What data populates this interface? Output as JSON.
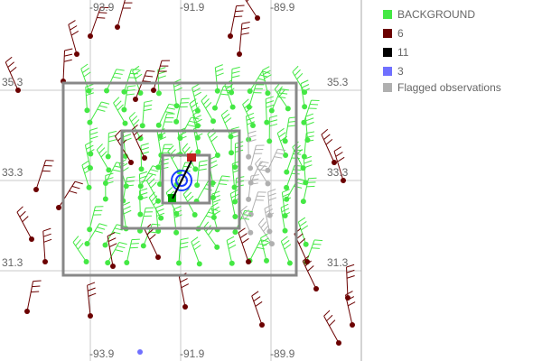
{
  "map": {
    "lon_labels": [
      "-93.9",
      "-91.9",
      "-89.9"
    ],
    "lat_labels": [
      "35.3",
      "33.3",
      "31.3"
    ]
  },
  "legend": [
    {
      "label": "BACKGROUND",
      "color": "#44e844"
    },
    {
      "label": "6",
      "color": "#6b0000"
    },
    {
      "label": "11",
      "color": "#000000"
    },
    {
      "label": "3",
      "color": "#7070ff"
    },
    {
      "label": "Flagged observations",
      "color": "#b0b0b0"
    }
  ]
}
